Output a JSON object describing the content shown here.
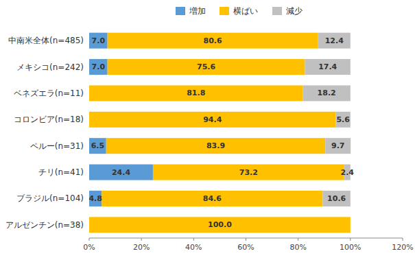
{
  "chart_data": {
    "type": "bar",
    "orientation": "horizontal",
    "stacked": true,
    "data_labels": true,
    "grid": false,
    "legend": "top",
    "categories": [
      "中南米全体(n=485)",
      "メキシコ(n=242)",
      "ベネズエラ(n=11)",
      "コロンビア(n=18)",
      "ペルー(n=31)",
      "チリ(n=41)",
      "ブラジル(n=104)",
      "アルゼンチン(n=38)"
    ],
    "series": [
      {
        "name": "増加",
        "color": "#5B9BD5",
        "values": [
          7.0,
          7.0,
          0.0,
          0.0,
          6.5,
          24.4,
          4.8,
          0.0
        ],
        "value_labels": [
          "7.0",
          "7.0",
          null,
          null,
          "6.5",
          "24.4",
          "4.8",
          null
        ]
      },
      {
        "name": "横ばい",
        "color": "#FFC000",
        "values": [
          80.6,
          75.6,
          81.8,
          94.4,
          83.9,
          73.2,
          84.6,
          100.0
        ],
        "value_labels": [
          "80.6",
          "75.6",
          "81.8",
          "94.4",
          "83.9",
          "73.2",
          "84.6",
          "100.0"
        ]
      },
      {
        "name": "減少",
        "color": "#C0C0C0",
        "values": [
          12.4,
          17.4,
          18.2,
          5.6,
          9.7,
          2.4,
          10.6,
          0.0
        ],
        "value_labels": [
          "12.4",
          "17.4",
          "18.2",
          "5.6",
          "9.7",
          "2.4",
          "10.6",
          null
        ]
      }
    ],
    "xlim": [
      0,
      120
    ],
    "xticks": [
      {
        "value": 0,
        "label": "0%"
      },
      {
        "value": 20,
        "label": "20%"
      },
      {
        "value": 40,
        "label": "40%"
      },
      {
        "value": 60,
        "label": "60%"
      },
      {
        "value": 80,
        "label": "80%"
      },
      {
        "value": 100,
        "label": "100%"
      },
      {
        "value": 120,
        "label": "120%"
      }
    ]
  }
}
